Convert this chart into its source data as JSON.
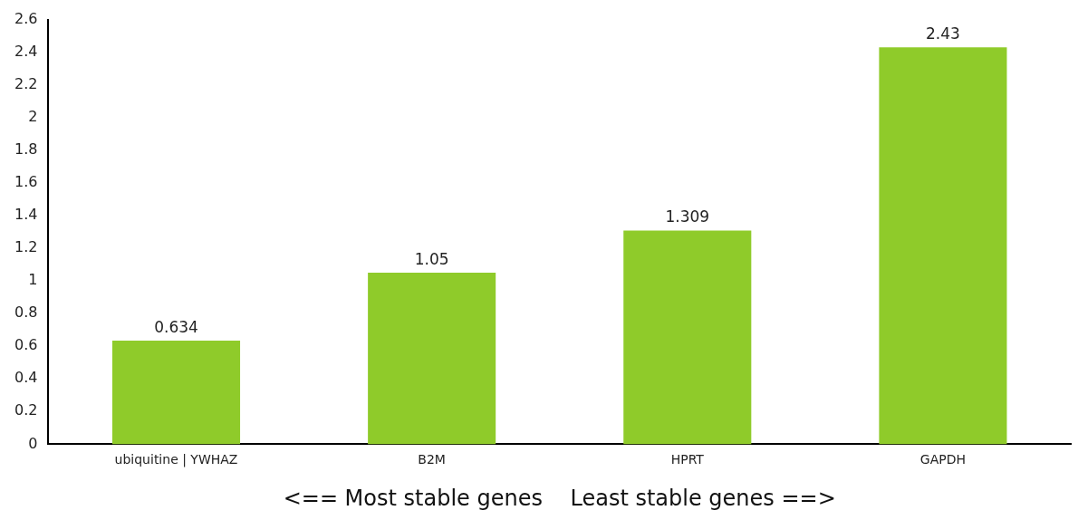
{
  "chart_data": {
    "type": "bar",
    "xlabel": "<== Most stable genes    Least stable genes ==>",
    "categories": [
      "ubiquitine | YWHAZ",
      "B2M",
      "HPRT",
      "GAPDH"
    ],
    "values": [
      0.634,
      1.05,
      1.309,
      2.43
    ],
    "color": "#8fcb2a",
    "ylim": [
      0,
      2.6
    ],
    "yticks": [
      0,
      0.2,
      0.4,
      0.6,
      0.8,
      1,
      1.2,
      1.4,
      1.6,
      1.8,
      2,
      2.2,
      2.4,
      2.6
    ],
    "grid": false,
    "legend": false,
    "data_labels": true
  }
}
